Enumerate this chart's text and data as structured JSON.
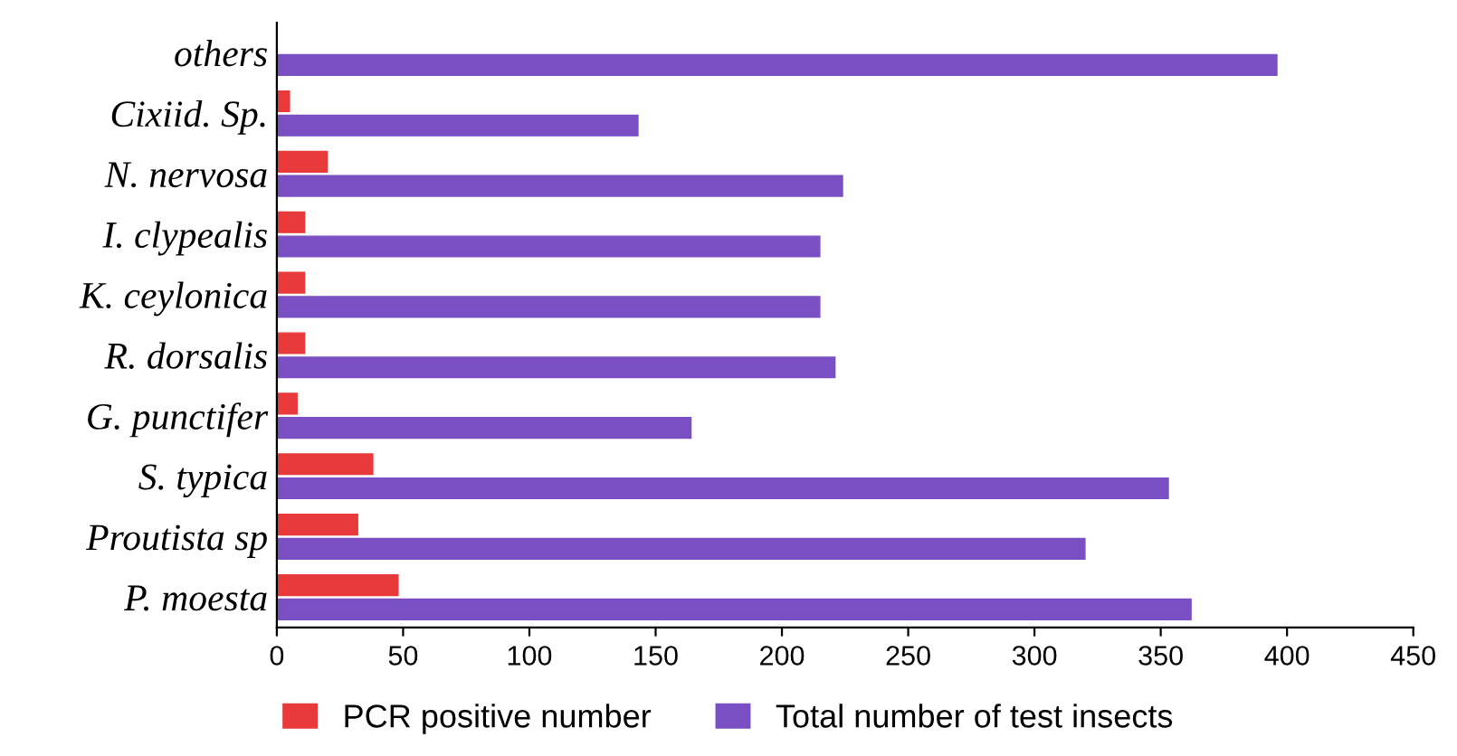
{
  "chart_data": {
    "type": "bar",
    "orientation": "horizontal",
    "categories": [
      "others",
      "Cixiid. Sp.",
      "N. nervosa",
      "I. clypealis",
      "K. ceylonica",
      "R. dorsalis",
      "G. punctifer",
      "S. typica",
      "Proutista sp",
      "P. moesta"
    ],
    "series": [
      {
        "name": "PCR positive number",
        "color": "#e8393b",
        "values": [
          0,
          5,
          20,
          11,
          11,
          11,
          8,
          38,
          32,
          48
        ]
      },
      {
        "name": "Total number of test insects",
        "color": "#7b4fc4",
        "values": [
          396,
          143,
          224,
          215,
          215,
          221,
          164,
          353,
          320,
          362
        ]
      }
    ],
    "xlim": [
      0,
      450
    ],
    "xticks": [
      0,
      50,
      100,
      150,
      200,
      250,
      300,
      350,
      400,
      450
    ],
    "grid": false,
    "legend": "bottom"
  }
}
